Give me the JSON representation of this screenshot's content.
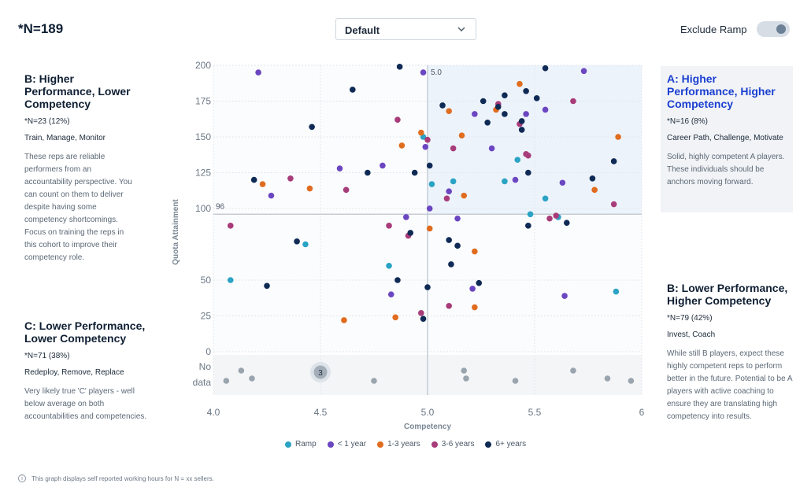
{
  "header": {
    "n_total": "*N=189",
    "dropdown_value": "Default",
    "toggle_label": "Exclude Ramp",
    "toggle_on": true
  },
  "quadrants": {
    "b_high": {
      "title": "B: Higher Performance, Lower Competency",
      "count": "*N=23 (12%)",
      "actions": "Train, Manage, Monitor",
      "description": "These reps are reliable performers from an accountability perspective. You can count on them to deliver despite having some competency shortcomings. Focus on training the reps in this cohort to improve their competency role."
    },
    "a": {
      "title": "A: Higher Performance, Higher Competency",
      "count": "*N=16 (8%)",
      "actions": "Career Path, Challenge, Motivate",
      "description": "Solid, highly competent A players. These individuals should be anchors moving forward."
    },
    "c": {
      "title": "C: Lower Performance, Lower Competency",
      "count": "*N=71 (38%)",
      "actions": "Redeploy, Remove, Replace",
      "description": "Very likely true 'C' players - well below average on both accountabilities and competencies."
    },
    "b_low": {
      "title": "B: Lower Performance, Higher Competency",
      "count": "*N=79 (42%)",
      "actions": "Invest, Coach",
      "description": "While still B players, expect these highly competent reps to perform better in the future. Potential to be A players with active coaching to ensure they are translating high competency into results."
    }
  },
  "footnote": "This graph displays self reported working hours for N = xx sellers.",
  "chart_data": {
    "type": "scatter",
    "xlabel": "Competency",
    "ylabel": "Quota Attainment",
    "xlim": [
      4.0,
      6.0
    ],
    "ylim": [
      0,
      200
    ],
    "x_ticks": [
      "4.0",
      "4.5",
      "5.0",
      "5.5",
      "6"
    ],
    "y_ticks": [
      "200",
      "175",
      "150",
      "125",
      "100",
      "50",
      "25",
      "0"
    ],
    "no_data_label": "No data",
    "x_ref": 5.0,
    "x_ref_label": "5.0",
    "y_ref": 96,
    "y_ref_label": "96",
    "cluster_label": "3",
    "cluster_x": 4.5,
    "colors": {
      "Ramp": "#2aa3c4",
      "< 1 year": "#6b46c1",
      "1-3 years": "#e06c1f",
      "3-6 years": "#a83c7a",
      "6+ years": "#0f2a55",
      "no_data": "#9aa4ae",
      "highlight": "#edf3fb"
    },
    "series": [
      {
        "name": "Ramp",
        "points": [
          [
            4.08,
            50
          ],
          [
            4.43,
            75
          ],
          [
            4.82,
            60
          ],
          [
            4.98,
            150
          ],
          [
            5.02,
            117
          ],
          [
            5.12,
            119
          ],
          [
            5.36,
            119
          ],
          [
            5.42,
            134
          ],
          [
            5.55,
            107
          ],
          [
            5.61,
            94
          ],
          [
            5.48,
            96
          ],
          [
            5.88,
            42
          ]
        ]
      },
      {
        "name": "< 1 year",
        "points": [
          [
            4.21,
            195
          ],
          [
            4.27,
            109
          ],
          [
            4.59,
            128
          ],
          [
            4.79,
            130
          ],
          [
            4.9,
            94
          ],
          [
            4.98,
            195
          ],
          [
            4.99,
            143
          ],
          [
            5.01,
            100
          ],
          [
            5.1,
            112
          ],
          [
            5.14,
            93
          ],
          [
            5.21,
            44
          ],
          [
            5.3,
            142
          ],
          [
            5.22,
            166
          ],
          [
            5.46,
            166
          ],
          [
            5.55,
            169
          ],
          [
            5.41,
            120
          ],
          [
            5.63,
            118
          ],
          [
            5.64,
            39
          ],
          [
            5.73,
            196
          ],
          [
            4.83,
            40
          ]
        ]
      },
      {
        "name": "1-3 years",
        "points": [
          [
            4.23,
            117
          ],
          [
            4.45,
            114
          ],
          [
            4.61,
            22
          ],
          [
            4.85,
            24
          ],
          [
            4.88,
            144
          ],
          [
            4.97,
            153
          ],
          [
            5.01,
            86
          ],
          [
            5.1,
            168
          ],
          [
            5.16,
            151
          ],
          [
            5.17,
            109
          ],
          [
            5.22,
            70
          ],
          [
            5.22,
            31
          ],
          [
            5.32,
            169
          ],
          [
            5.43,
            187
          ],
          [
            5.78,
            113
          ],
          [
            5.89,
            150
          ]
        ]
      },
      {
        "name": "3-6 years",
        "points": [
          [
            4.08,
            88
          ],
          [
            4.36,
            121
          ],
          [
            4.62,
            113
          ],
          [
            4.82,
            88
          ],
          [
            4.86,
            162
          ],
          [
            4.91,
            81
          ],
          [
            4.97,
            27
          ],
          [
            5.0,
            148
          ],
          [
            5.09,
            107
          ],
          [
            5.1,
            32
          ],
          [
            5.12,
            142
          ],
          [
            5.33,
            173
          ],
          [
            5.43,
            159
          ],
          [
            5.46,
            138
          ],
          [
            5.47,
            137
          ],
          [
            5.57,
            93
          ],
          [
            5.6,
            95
          ],
          [
            5.68,
            175
          ],
          [
            5.87,
            103
          ]
        ]
      },
      {
        "name": "6+ years",
        "points": [
          [
            4.19,
            120
          ],
          [
            4.25,
            46
          ],
          [
            4.39,
            77
          ],
          [
            4.46,
            157
          ],
          [
            4.65,
            183
          ],
          [
            4.72,
            125
          ],
          [
            4.86,
            50
          ],
          [
            4.87,
            199
          ],
          [
            4.92,
            83
          ],
          [
            4.94,
            125
          ],
          [
            4.98,
            23
          ],
          [
            5.0,
            45
          ],
          [
            5.01,
            130
          ],
          [
            5.07,
            172
          ],
          [
            5.1,
            78
          ],
          [
            5.11,
            61
          ],
          [
            5.14,
            74
          ],
          [
            5.24,
            48
          ],
          [
            5.26,
            175
          ],
          [
            5.28,
            160
          ],
          [
            5.33,
            171
          ],
          [
            5.36,
            179
          ],
          [
            5.44,
            161
          ],
          [
            5.46,
            182
          ],
          [
            5.55,
            198
          ],
          [
            5.65,
            90
          ],
          [
            5.77,
            121
          ],
          [
            5.87,
            133
          ],
          [
            5.47,
            125
          ],
          [
            5.44,
            155
          ],
          [
            5.51,
            177
          ],
          [
            5.36,
            166
          ],
          [
            5.47,
            88
          ]
        ]
      }
    ],
    "no_data_points": [
      4.06,
      4.13,
      4.18,
      4.75,
      5.17,
      5.18,
      5.41,
      5.68,
      5.84,
      5.95
    ]
  }
}
